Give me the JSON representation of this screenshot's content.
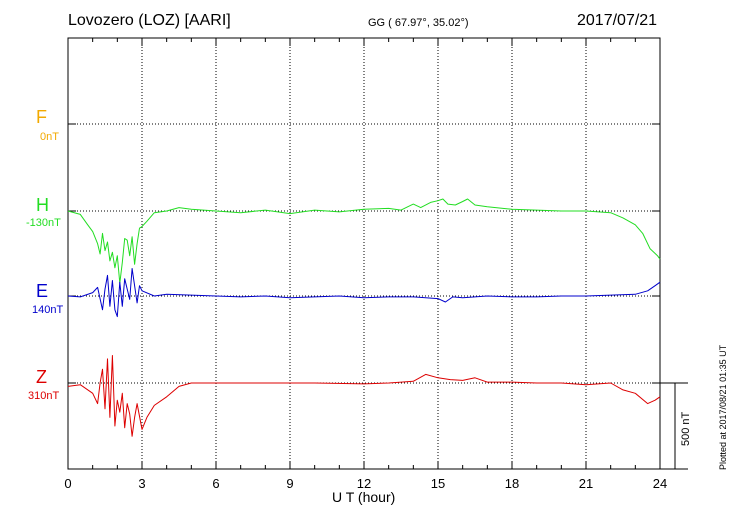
{
  "header": {
    "station": "Lovozero (LOZ)  [AARI]",
    "coords": "GG ( 67.97°,  35.02°)",
    "date": "2017/07/21"
  },
  "plotted_note": "Plotted at 2017/08/21 01:35 UT",
  "colors": {
    "F": "#f2a900",
    "H": "#22dd22",
    "E": "#0000cc",
    "Z": "#dd0000"
  },
  "chart_data": {
    "type": "line",
    "title": "",
    "xlabel": "U T (hour)",
    "ylabel": "",
    "xlim": [
      0,
      24
    ],
    "x_ticks": [
      "0",
      "3",
      "6",
      "9",
      "12",
      "15",
      "18",
      "21",
      "24"
    ],
    "scale_bar": "500 nT",
    "grid": true,
    "units": "nT (relative to component baseline)",
    "series": [
      {
        "name": "F",
        "baseline": "0nT",
        "x": [],
        "values": []
      },
      {
        "name": "H",
        "baseline": "-130nT",
        "x": [
          0,
          0.5,
          0.8,
          1.0,
          1.2,
          1.3,
          1.4,
          1.5,
          1.6,
          1.7,
          1.8,
          1.9,
          2.0,
          2.1,
          2.2,
          2.3,
          2.4,
          2.5,
          2.6,
          2.7,
          2.8,
          2.9,
          3.0,
          3.2,
          3.5,
          4.0,
          4.5,
          5.0,
          6.0,
          7.0,
          8.0,
          9.0,
          10.0,
          11.0,
          12.0,
          13.0,
          13.5,
          14.0,
          14.3,
          14.7,
          15.0,
          15.2,
          15.4,
          15.7,
          16.0,
          16.2,
          16.5,
          17.0,
          18.0,
          19.0,
          20.0,
          21.0,
          22.0,
          22.5,
          23.0,
          23.3,
          23.6,
          23.9,
          24.0
        ],
        "values": [
          0,
          -20,
          -80,
          -120,
          -190,
          -250,
          -130,
          -230,
          -180,
          -290,
          -240,
          -330,
          -260,
          -420,
          -300,
          -160,
          -170,
          -260,
          -150,
          -310,
          -190,
          -100,
          -90,
          -60,
          -10,
          0,
          20,
          10,
          0,
          -10,
          5,
          -15,
          5,
          -5,
          10,
          15,
          5,
          40,
          20,
          50,
          60,
          70,
          40,
          35,
          55,
          70,
          35,
          25,
          10,
          5,
          0,
          0,
          -10,
          -40,
          -80,
          -130,
          -220,
          -260,
          -280
        ]
      },
      {
        "name": "E",
        "baseline": "140nT",
        "x": [
          0,
          0.5,
          1.0,
          1.2,
          1.4,
          1.5,
          1.6,
          1.7,
          1.8,
          1.9,
          2.0,
          2.1,
          2.2,
          2.3,
          2.4,
          2.5,
          2.6,
          2.7,
          2.8,
          2.9,
          3.0,
          3.5,
          4.0,
          5.0,
          6.0,
          7.0,
          8.0,
          9.0,
          10.0,
          11.0,
          12.0,
          13.0,
          14.0,
          15.0,
          15.3,
          15.6,
          16.0,
          17.0,
          18.0,
          19.0,
          20.0,
          21.0,
          22.0,
          23.0,
          23.5,
          23.8,
          24.0
        ],
        "values": [
          0,
          -5,
          20,
          50,
          -80,
          40,
          120,
          -60,
          90,
          -80,
          -120,
          80,
          -60,
          100,
          40,
          -20,
          160,
          60,
          -40,
          60,
          30,
          0,
          10,
          5,
          0,
          -5,
          0,
          -10,
          -5,
          0,
          -10,
          -5,
          -5,
          -15,
          -35,
          -5,
          -10,
          0,
          -5,
          -5,
          0,
          0,
          5,
          10,
          30,
          60,
          80
        ]
      },
      {
        "name": "Z",
        "baseline": "310nT",
        "x": [
          0,
          0.5,
          1.0,
          1.2,
          1.3,
          1.4,
          1.5,
          1.6,
          1.7,
          1.8,
          1.9,
          2.0,
          2.1,
          2.2,
          2.3,
          2.4,
          2.5,
          2.6,
          2.7,
          2.8,
          3.0,
          3.2,
          3.5,
          4.0,
          4.5,
          5.0,
          6.0,
          8.0,
          10.0,
          12.0,
          13.0,
          14.0,
          14.5,
          15.0,
          15.5,
          16.0,
          16.5,
          17.0,
          18.0,
          19.0,
          20.0,
          21.0,
          21.5,
          22.0,
          22.5,
          23.0,
          23.5,
          23.8,
          24.0
        ],
        "values": [
          -20,
          -10,
          -60,
          -120,
          0,
          80,
          -150,
          140,
          -200,
          160,
          -250,
          -100,
          -170,
          -60,
          -260,
          -120,
          -180,
          -310,
          -200,
          -120,
          -270,
          -200,
          -130,
          -80,
          -20,
          0,
          0,
          0,
          0,
          -5,
          0,
          10,
          50,
          30,
          20,
          15,
          30,
          5,
          5,
          0,
          0,
          -10,
          -5,
          0,
          -40,
          -60,
          -120,
          -100,
          -80
        ]
      }
    ]
  }
}
